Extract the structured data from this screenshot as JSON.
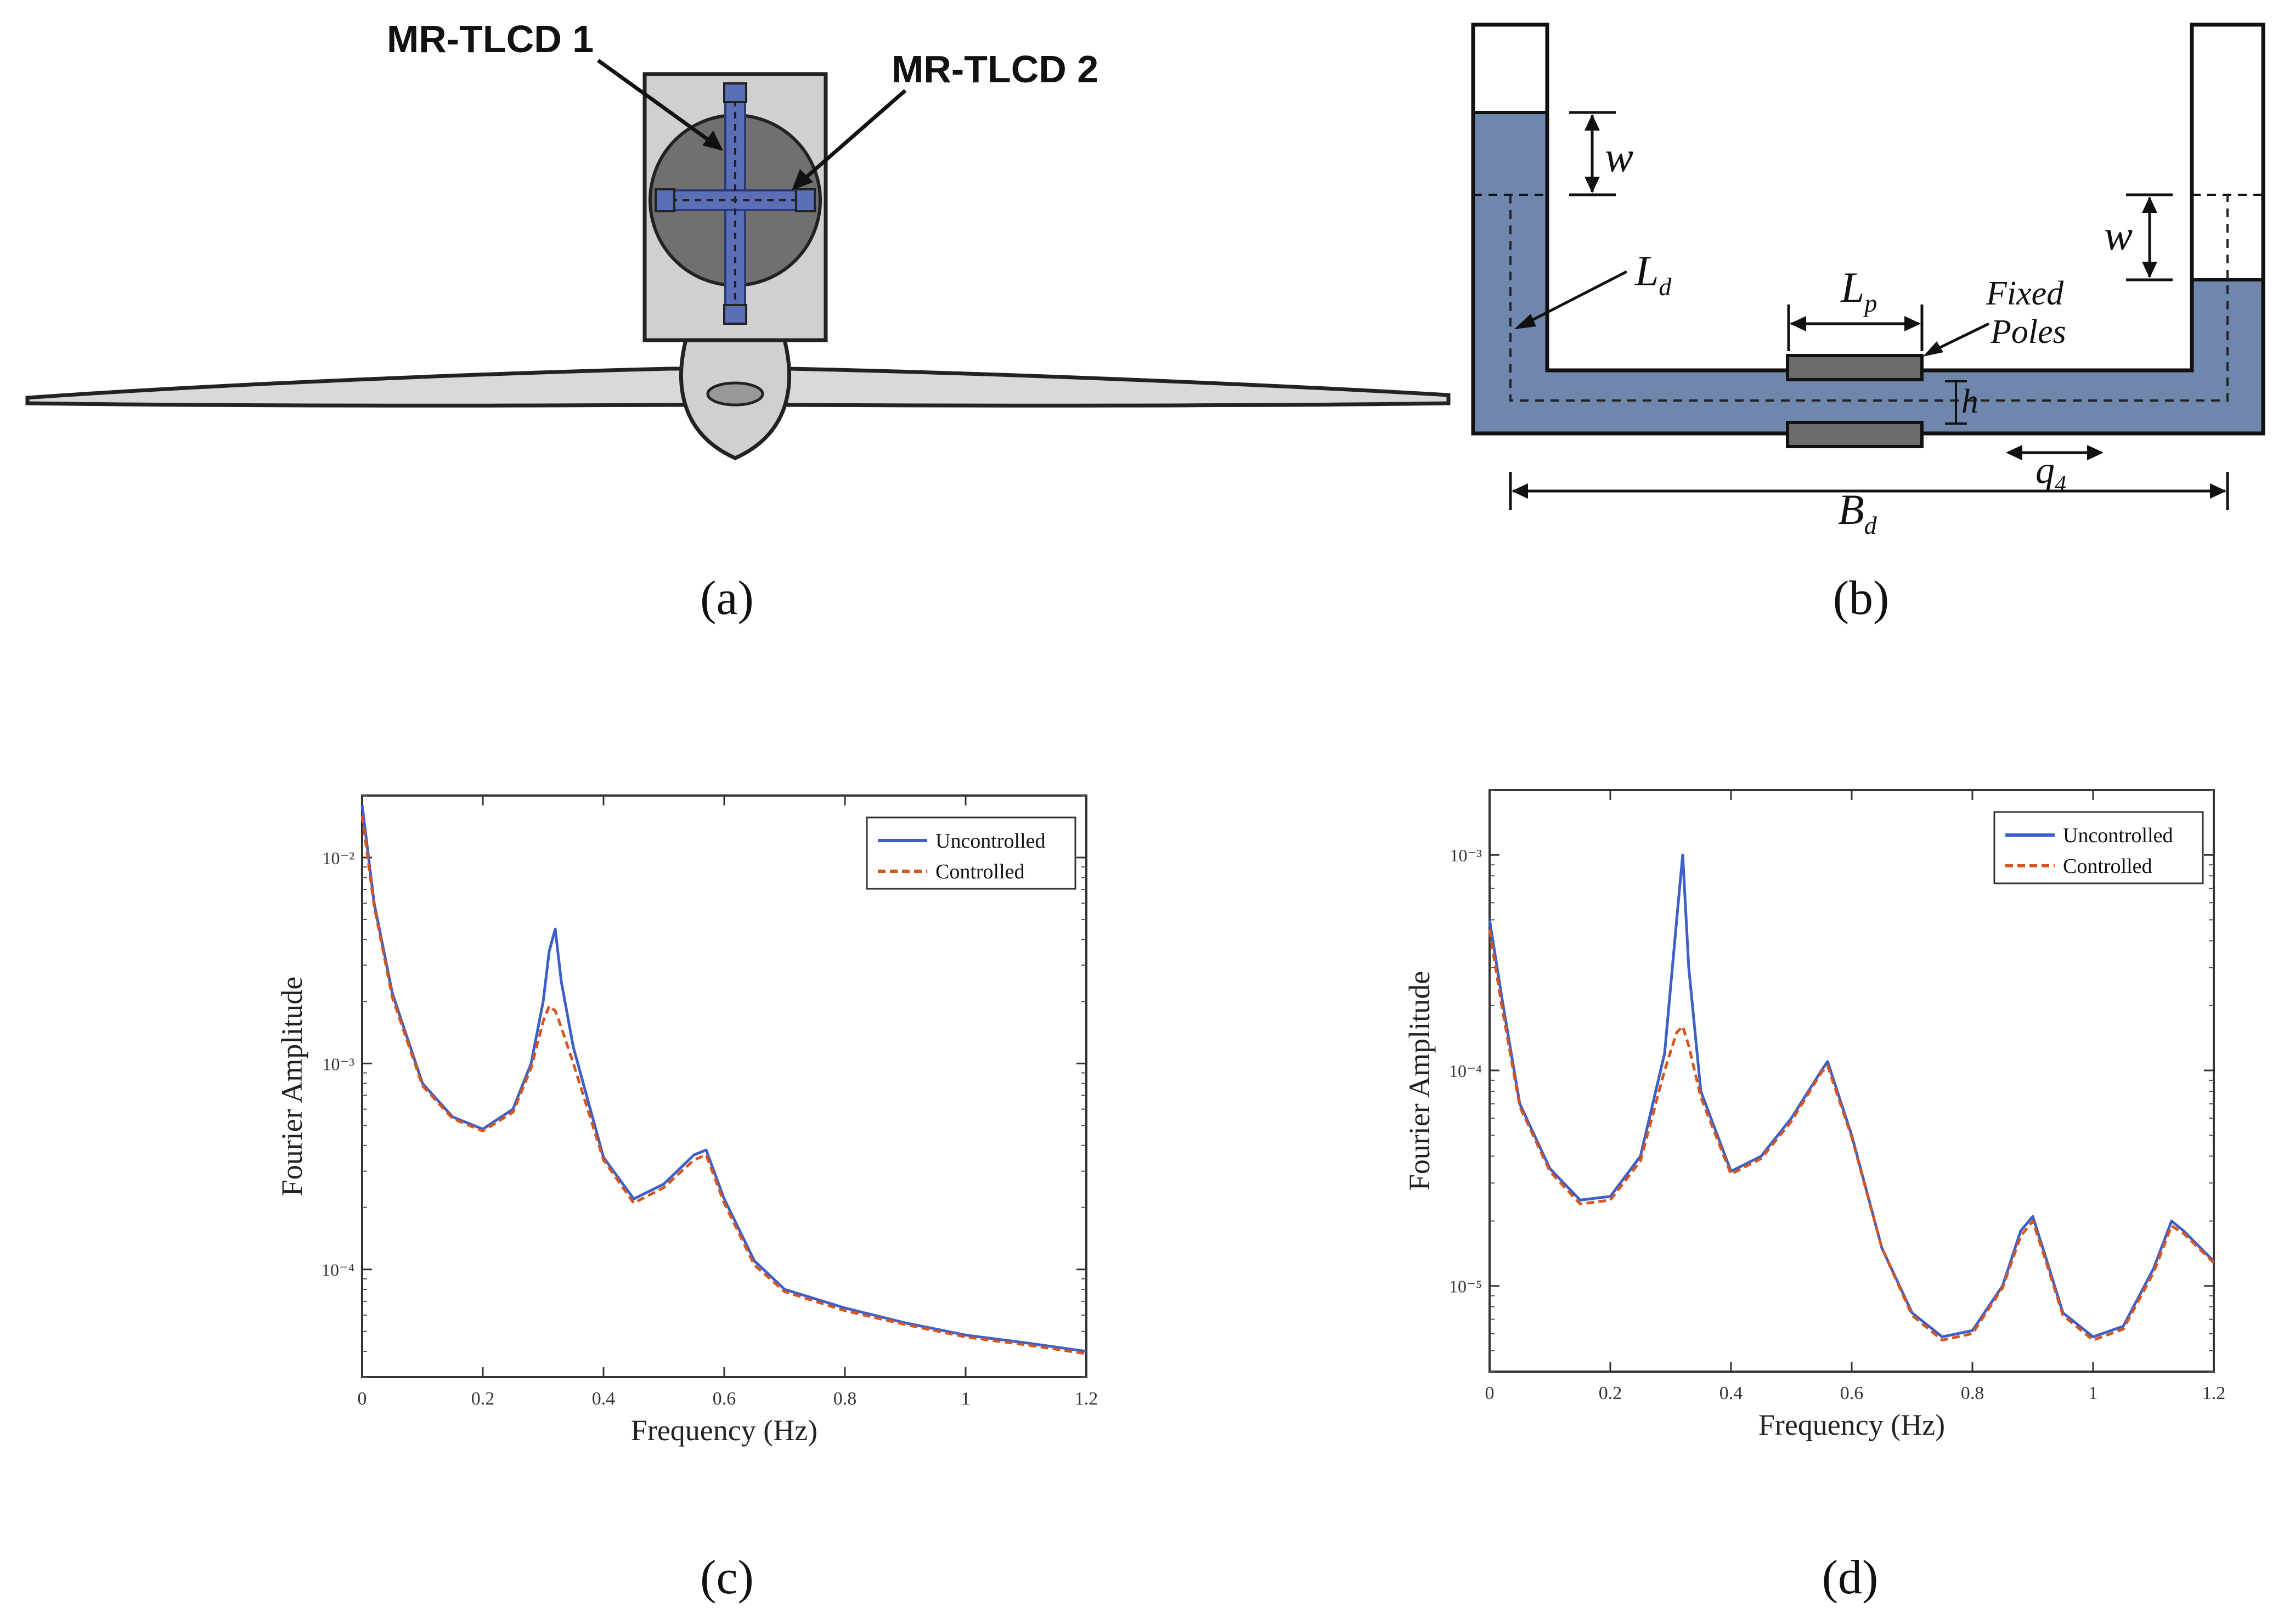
{
  "figure": {
    "panel_a": {
      "caption": "(a)",
      "label_1": "MR-TLCD 1",
      "label_2": "MR-TLCD 2"
    },
    "panel_b": {
      "caption": "(b)",
      "w_left": "w",
      "w_right": "w",
      "Ld_main": "L",
      "Ld_sub": "d",
      "Lp_main": "L",
      "Lp_sub": "p",
      "fixed": "Fixed",
      "poles": "Poles",
      "h": "h",
      "q_main": "q",
      "q_sub": "4",
      "Bd_main": "B",
      "Bd_sub": "d"
    },
    "panel_c": {
      "caption": "(c)"
    },
    "panel_d": {
      "caption": "(d)"
    }
  },
  "colors": {
    "fluid": "#6f87ad",
    "uncontrolled": "#3d5fc7",
    "controlled": "#d4561e",
    "tower": "#d0d0d0",
    "hub": "#707070"
  },
  "chart_data": [
    {
      "id": "c",
      "type": "line",
      "title": "",
      "xlabel": "Frequency (Hz)",
      "ylabel": "Fourier Amplitude",
      "yscale": "log",
      "xlim": [
        0,
        1.2
      ],
      "ylim": [
        3e-05,
        0.02
      ],
      "xticks": [
        "0",
        "0.2",
        "0.4",
        "0.6",
        "0.8",
        "1",
        "1.2"
      ],
      "yticks": [
        "10⁻²",
        "10⁻³",
        "10⁻⁴"
      ],
      "ytick_values": [
        0.01,
        0.001,
        0.0001
      ],
      "legend": [
        "Uncontrolled",
        "Controlled"
      ],
      "series": [
        {
          "name": "Uncontrolled",
          "x": [
            0.0,
            0.02,
            0.05,
            0.1,
            0.15,
            0.2,
            0.25,
            0.28,
            0.3,
            0.31,
            0.32,
            0.33,
            0.35,
            0.4,
            0.45,
            0.5,
            0.55,
            0.57,
            0.6,
            0.65,
            0.7,
            0.8,
            0.9,
            1.0,
            1.1,
            1.2
          ],
          "y": [
            0.018,
            0.006,
            0.0022,
            0.0008,
            0.00055,
            0.00048,
            0.0006,
            0.001,
            0.002,
            0.0035,
            0.0045,
            0.0025,
            0.0012,
            0.00035,
            0.00022,
            0.00026,
            0.00036,
            0.00038,
            0.00022,
            0.00011,
            8e-05,
            6.5e-05,
            5.5e-05,
            4.8e-05,
            4.4e-05,
            4e-05
          ]
        },
        {
          "name": "Controlled",
          "x": [
            0.0,
            0.02,
            0.05,
            0.1,
            0.15,
            0.2,
            0.25,
            0.28,
            0.3,
            0.31,
            0.32,
            0.33,
            0.35,
            0.4,
            0.45,
            0.5,
            0.55,
            0.57,
            0.6,
            0.65,
            0.7,
            0.8,
            0.9,
            1.0,
            1.1,
            1.2
          ],
          "y": [
            0.016,
            0.0058,
            0.0021,
            0.00078,
            0.00054,
            0.00047,
            0.00058,
            0.00095,
            0.0016,
            0.0019,
            0.0018,
            0.0015,
            0.001,
            0.00034,
            0.00021,
            0.00025,
            0.00034,
            0.00036,
            0.00021,
            0.000105,
            7.8e-05,
            6.3e-05,
            5.4e-05,
            4.7e-05,
            4.3e-05,
            3.9e-05
          ]
        }
      ]
    },
    {
      "id": "d",
      "type": "line",
      "title": "",
      "xlabel": "Frequency (Hz)",
      "ylabel": "Fourier Amplitude",
      "yscale": "log",
      "xlim": [
        0,
        1.2
      ],
      "ylim": [
        4e-06,
        0.002
      ],
      "xticks": [
        "0",
        "0.2",
        "0.4",
        "0.6",
        "0.8",
        "1",
        "1.2"
      ],
      "yticks": [
        "10⁻³",
        "10⁻⁴",
        "10⁻⁵"
      ],
      "ytick_values": [
        0.001,
        0.0001,
        1e-05
      ],
      "legend": [
        "Uncontrolled",
        "Controlled"
      ],
      "series": [
        {
          "name": "Uncontrolled",
          "x": [
            0.0,
            0.02,
            0.05,
            0.1,
            0.15,
            0.2,
            0.25,
            0.29,
            0.31,
            0.32,
            0.33,
            0.35,
            0.4,
            0.45,
            0.5,
            0.55,
            0.56,
            0.6,
            0.65,
            0.7,
            0.75,
            0.8,
            0.85,
            0.88,
            0.9,
            0.92,
            0.95,
            1.0,
            1.05,
            1.1,
            1.13,
            1.15,
            1.2
          ],
          "y": [
            0.0005,
            0.00022,
            7e-05,
            3.5e-05,
            2.5e-05,
            2.6e-05,
            4e-05,
            0.00012,
            0.0005,
            0.001,
            0.0003,
            8e-05,
            3.4e-05,
            4e-05,
            6e-05,
            0.0001,
            0.00011,
            5e-05,
            1.5e-05,
            7.5e-06,
            5.8e-06,
            6.2e-06,
            1e-05,
            1.8e-05,
            2.1e-05,
            1.4e-05,
            7.5e-06,
            5.8e-06,
            6.5e-06,
            1.2e-05,
            2e-05,
            1.8e-05,
            1.3e-05
          ]
        },
        {
          "name": "Controlled",
          "x": [
            0.0,
            0.02,
            0.05,
            0.1,
            0.15,
            0.2,
            0.25,
            0.29,
            0.31,
            0.32,
            0.33,
            0.35,
            0.4,
            0.45,
            0.5,
            0.55,
            0.56,
            0.6,
            0.65,
            0.7,
            0.75,
            0.8,
            0.85,
            0.88,
            0.9,
            0.92,
            0.95,
            1.0,
            1.05,
            1.1,
            1.13,
            1.15,
            1.2
          ],
          "y": [
            0.00045,
            0.0002,
            6.8e-05,
            3.4e-05,
            2.4e-05,
            2.5e-05,
            3.8e-05,
            0.0001,
            0.00015,
            0.00016,
            0.00013,
            7.5e-05,
            3.3e-05,
            3.9e-05,
            5.8e-05,
            9.8e-05,
            0.000105,
            4.9e-05,
            1.5e-05,
            7.3e-06,
            5.6e-06,
            6e-06,
            9.8e-06,
            1.7e-05,
            2e-05,
            1.35e-05,
            7.3e-06,
            5.6e-06,
            6.3e-06,
            1.15e-05,
            1.9e-05,
            1.75e-05,
            1.28e-05
          ]
        }
      ]
    }
  ]
}
